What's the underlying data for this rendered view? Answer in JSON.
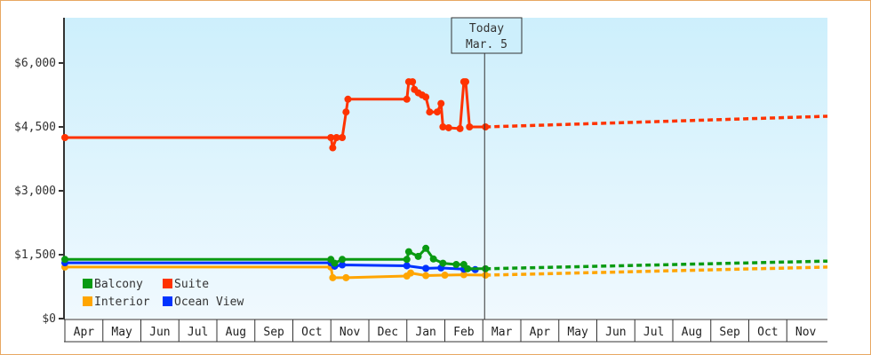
{
  "chart_data": {
    "type": "line",
    "title": "",
    "xlabel": "",
    "ylabel": "",
    "ylim": [
      0,
      7000
    ],
    "y_ticks": [
      "$0",
      "$1,500",
      "$3,000",
      "$4,500",
      "$6,000"
    ],
    "y_tick_values": [
      0,
      1500,
      3000,
      4500,
      6000
    ],
    "x_tick_labels": [
      "Apr",
      "May",
      "Jun",
      "Jul",
      "Aug",
      "Sep",
      "Oct",
      "Nov",
      "Dec",
      "Jan",
      "Feb",
      "Mar",
      "Apr",
      "May",
      "Jun",
      "Jul",
      "Aug",
      "Sep",
      "Oct",
      "Nov"
    ],
    "today_marker": {
      "line1": "Today",
      "line2": "Mar. 5"
    },
    "legend": [
      "Balcony",
      "Suite",
      "Interior",
      "Ocean View"
    ],
    "colors": {
      "Balcony": "#0a9a12",
      "Suite": "#ff3300",
      "Interior": "#ffa500",
      "Ocean View": "#0033ff"
    },
    "series": [
      {
        "name": "Suite",
        "historical": [
          [
            0,
            4250
          ],
          [
            7.0,
            4250
          ],
          [
            7.05,
            4010
          ],
          [
            7.15,
            4250
          ],
          [
            7.3,
            4250
          ],
          [
            7.4,
            4850
          ],
          [
            7.45,
            5150
          ],
          [
            9.0,
            5150
          ],
          [
            9.05,
            5560
          ],
          [
            9.15,
            5560
          ],
          [
            9.2,
            5380
          ],
          [
            9.3,
            5300
          ],
          [
            9.4,
            5250
          ],
          [
            9.5,
            5200
          ],
          [
            9.6,
            4850
          ],
          [
            9.8,
            4850
          ],
          [
            9.9,
            5050
          ],
          [
            9.95,
            4500
          ],
          [
            10.1,
            4480
          ],
          [
            10.4,
            4460
          ],
          [
            10.5,
            5560
          ],
          [
            10.55,
            5560
          ],
          [
            10.65,
            4500
          ],
          [
            11.07,
            4500
          ]
        ],
        "forecast_end": 4750
      },
      {
        "name": "Balcony",
        "historical": [
          [
            0,
            1390
          ],
          [
            7.0,
            1390
          ],
          [
            7.1,
            1300
          ],
          [
            7.3,
            1390
          ],
          [
            9.0,
            1390
          ],
          [
            9.05,
            1570
          ],
          [
            9.3,
            1460
          ],
          [
            9.5,
            1650
          ],
          [
            9.7,
            1400
          ],
          [
            9.95,
            1300
          ],
          [
            10.3,
            1270
          ],
          [
            10.5,
            1270
          ],
          [
            10.6,
            1170
          ],
          [
            11.07,
            1170
          ]
        ],
        "forecast_end": 1350
      },
      {
        "name": "Ocean View",
        "historical": [
          [
            0,
            1310
          ],
          [
            7.0,
            1310
          ],
          [
            7.1,
            1230
          ],
          [
            7.3,
            1260
          ],
          [
            9.0,
            1240
          ],
          [
            9.5,
            1180
          ],
          [
            9.9,
            1190
          ],
          [
            10.5,
            1160
          ],
          [
            10.8,
            1150
          ]
        ],
        "forecast_end": null
      },
      {
        "name": "Interior",
        "historical": [
          [
            0,
            1210
          ],
          [
            7.0,
            1210
          ],
          [
            7.05,
            960
          ],
          [
            7.4,
            960
          ],
          [
            9.0,
            1000
          ],
          [
            9.1,
            1070
          ],
          [
            9.5,
            1010
          ],
          [
            10.0,
            1020
          ],
          [
            10.5,
            1030
          ],
          [
            11.07,
            1020
          ]
        ],
        "forecast_end": 1210
      }
    ]
  }
}
